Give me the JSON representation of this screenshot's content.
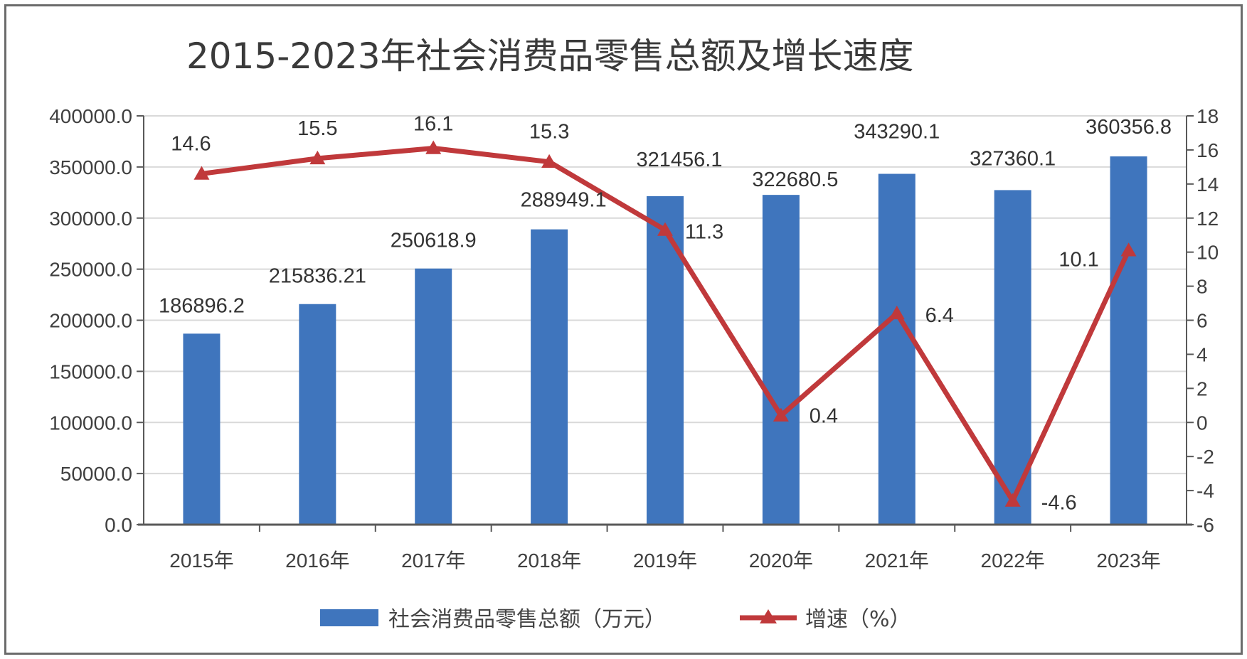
{
  "chart_data": {
    "type": "bar+line",
    "title": "2015-2023年社会消费品零售总额及增长速度",
    "categories": [
      "2015年",
      "2016年",
      "2017年",
      "2018年",
      "2019年",
      "2020年",
      "2021年",
      "2022年",
      "2023年"
    ],
    "series": [
      {
        "name": "社会消费品零售总额（万元）",
        "type": "bar",
        "axis": "left",
        "color": "#3f75bd",
        "values": [
          186896.2,
          215836.21,
          250618.9,
          288949.1,
          321456.1,
          322680.5,
          343290.1,
          327360.1,
          360356.8
        ],
        "labels": [
          "186896.2",
          "215836.21",
          "250618.9",
          "288949.1",
          "321456.1",
          "322680.5",
          "343290.1",
          "327360.1",
          "360356.8"
        ]
      },
      {
        "name": "增速（%）",
        "type": "line",
        "axis": "right",
        "color": "#c0393b",
        "marker": "triangle",
        "values": [
          14.6,
          15.5,
          16.1,
          15.3,
          11.3,
          0.4,
          6.4,
          -4.6,
          10.1
        ],
        "labels": [
          "14.6",
          "15.5",
          "16.1",
          "15.3",
          "11.3",
          "0.4",
          "6.4",
          "-4.6",
          "10.1"
        ]
      }
    ],
    "left_axis": {
      "ylim": [
        0,
        400000
      ],
      "ticks": [
        0,
        50000,
        100000,
        150000,
        200000,
        250000,
        300000,
        350000,
        400000
      ],
      "tick_labels": [
        "0.0",
        "50000.0",
        "100000.0",
        "150000.0",
        "200000.0",
        "250000.0",
        "300000.0",
        "350000.0",
        "400000.0"
      ]
    },
    "right_axis": {
      "ylim": [
        -6,
        18
      ],
      "ticks": [
        -6,
        -4,
        -2,
        0,
        2,
        4,
        6,
        8,
        10,
        12,
        14,
        16,
        18
      ],
      "tick_labels": [
        "-6",
        "-4",
        "-2",
        "0",
        "2",
        "4",
        "6",
        "8",
        "10",
        "12",
        "14",
        "16",
        "18"
      ]
    },
    "grid": true,
    "legend_position": "bottom"
  }
}
